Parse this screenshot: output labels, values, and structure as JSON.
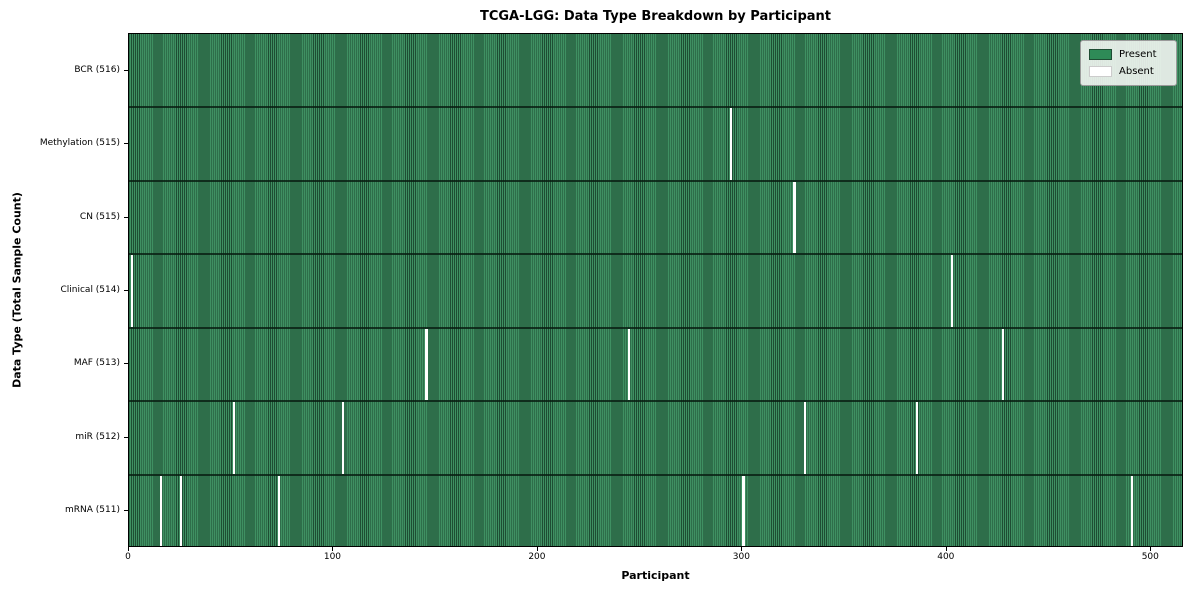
{
  "chart_data": {
    "type": "heatmap",
    "title": "TCGA-LGG: Data Type Breakdown by Participant",
    "xlabel": "Participant",
    "ylabel": "Data Type (Total Sample Count)",
    "x_ticks": [
      0,
      100,
      200,
      300,
      400,
      500
    ],
    "x_range": [
      0,
      516
    ],
    "n_participants": 516,
    "grid": false,
    "legend_position": "upper right",
    "colors": {
      "present": "#2e8b57",
      "present_edge": "#1e4d33",
      "absent": "#ffffff"
    },
    "legend": [
      {
        "label": "Present",
        "color": "#2e8b57"
      },
      {
        "label": "Absent",
        "color": "#ffffff"
      }
    ],
    "rows": [
      {
        "label": "BCR (516)",
        "total": 516,
        "absent_participants": []
      },
      {
        "label": "Methylation (515)",
        "total": 515,
        "absent_participants": [
          294
        ]
      },
      {
        "label": "CN (515)",
        "total": 515,
        "absent_participants": [
          325
        ]
      },
      {
        "label": "Clinical (514)",
        "total": 514,
        "absent_participants": [
          1,
          402
        ]
      },
      {
        "label": "MAF (513)",
        "total": 513,
        "absent_participants": [
          145,
          244,
          427
        ]
      },
      {
        "label": "miR (512)",
        "total": 512,
        "absent_participants": [
          51,
          104,
          330,
          385
        ]
      },
      {
        "label": "mRNA (511)",
        "total": 511,
        "absent_participants": [
          15,
          25,
          73,
          300,
          490
        ]
      }
    ]
  }
}
